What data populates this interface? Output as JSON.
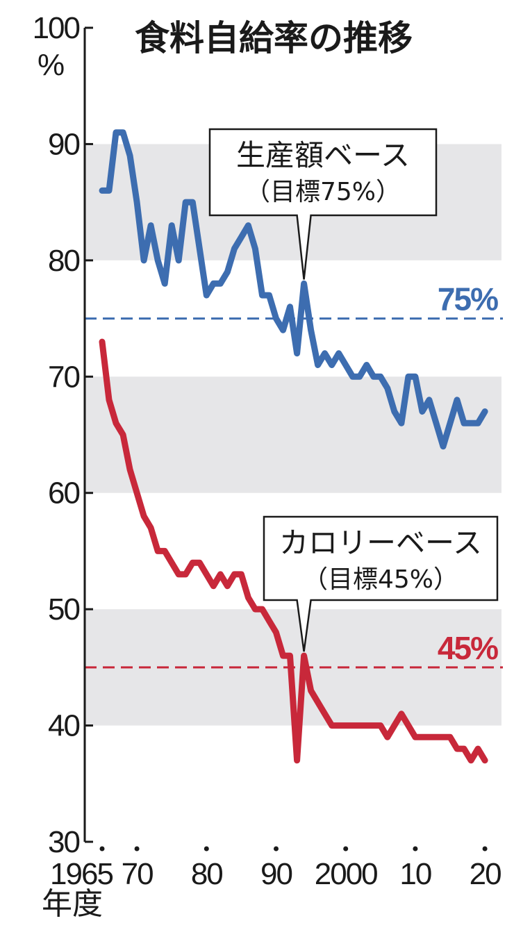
{
  "chart_data": {
    "type": "line",
    "title": "食料自給率の推移",
    "y_unit": "%",
    "x_unit": "年度",
    "ylim": [
      30,
      100
    ],
    "y_ticks": [
      {
        "value": 100,
        "label": "100"
      },
      {
        "value": 90,
        "label": "90"
      },
      {
        "value": 80,
        "label": "80"
      },
      {
        "value": 70,
        "label": "70"
      },
      {
        "value": 60,
        "label": "60"
      },
      {
        "value": 50,
        "label": "50"
      },
      {
        "value": 40,
        "label": "40"
      },
      {
        "value": 30,
        "label": "30"
      }
    ],
    "xlim": [
      1965,
      2020
    ],
    "x_ticks": [
      {
        "value": 1965,
        "label": "1965"
      },
      {
        "value": 1970,
        "label": "70"
      },
      {
        "value": 1980,
        "label": "80"
      },
      {
        "value": 1990,
        "label": "90"
      },
      {
        "value": 2000,
        "label": "2000"
      },
      {
        "value": 2010,
        "label": "10"
      },
      {
        "value": 2020,
        "label": "20"
      }
    ],
    "bands": [
      [
        80,
        90
      ],
      [
        60,
        70
      ],
      [
        40,
        50
      ]
    ],
    "targets": [
      {
        "value": 75,
        "label": "75%",
        "color": "#3d6db0"
      },
      {
        "value": 45,
        "label": "45%",
        "color": "#c8283a"
      }
    ],
    "x": [
      1965,
      1966,
      1967,
      1968,
      1969,
      1970,
      1971,
      1972,
      1973,
      1974,
      1975,
      1976,
      1977,
      1978,
      1979,
      1980,
      1981,
      1982,
      1983,
      1984,
      1985,
      1986,
      1987,
      1988,
      1989,
      1990,
      1991,
      1992,
      1993,
      1994,
      1995,
      1996,
      1997,
      1998,
      1999,
      2000,
      2001,
      2002,
      2003,
      2004,
      2005,
      2006,
      2007,
      2008,
      2009,
      2010,
      2011,
      2012,
      2013,
      2014,
      2015,
      2016,
      2017,
      2018,
      2019,
      2020
    ],
    "series": [
      {
        "name": "生産額ベース",
        "color": "#3d6db0",
        "values": [
          86,
          86,
          91,
          91,
          89,
          85,
          80,
          83,
          80,
          78,
          83,
          80,
          85,
          85,
          81,
          77,
          78,
          78,
          79,
          81,
          82,
          83,
          81,
          77,
          77,
          75,
          74,
          76,
          72,
          78,
          74,
          71,
          72,
          71,
          72,
          71,
          70,
          70,
          71,
          70,
          70,
          69,
          67,
          66,
          70,
          70,
          67,
          68,
          66,
          64,
          66,
          68,
          66,
          66,
          66,
          67
        ]
      },
      {
        "name": "カロリーベース",
        "color": "#c8283a",
        "values": [
          73,
          68,
          66,
          65,
          62,
          60,
          58,
          57,
          55,
          55,
          54,
          53,
          53,
          54,
          54,
          53,
          52,
          53,
          52,
          53,
          53,
          51,
          50,
          50,
          49,
          48,
          46,
          46,
          37,
          46,
          43,
          42,
          41,
          40,
          40,
          40,
          40,
          40,
          40,
          40,
          40,
          39,
          40,
          41,
          40,
          39,
          39,
          39,
          39,
          39,
          39,
          38,
          38,
          37,
          38,
          37
        ]
      }
    ],
    "callouts": [
      {
        "series": 0,
        "line1": "生産額ベース",
        "line2": "（目標75%）",
        "point_x": 1994,
        "point_y": 78
      },
      {
        "series": 1,
        "line1": "カロリーベース",
        "line2": "（目標45%）",
        "point_x": 1994,
        "point_y": 46
      }
    ],
    "grid": false,
    "legend": "callouts"
  }
}
